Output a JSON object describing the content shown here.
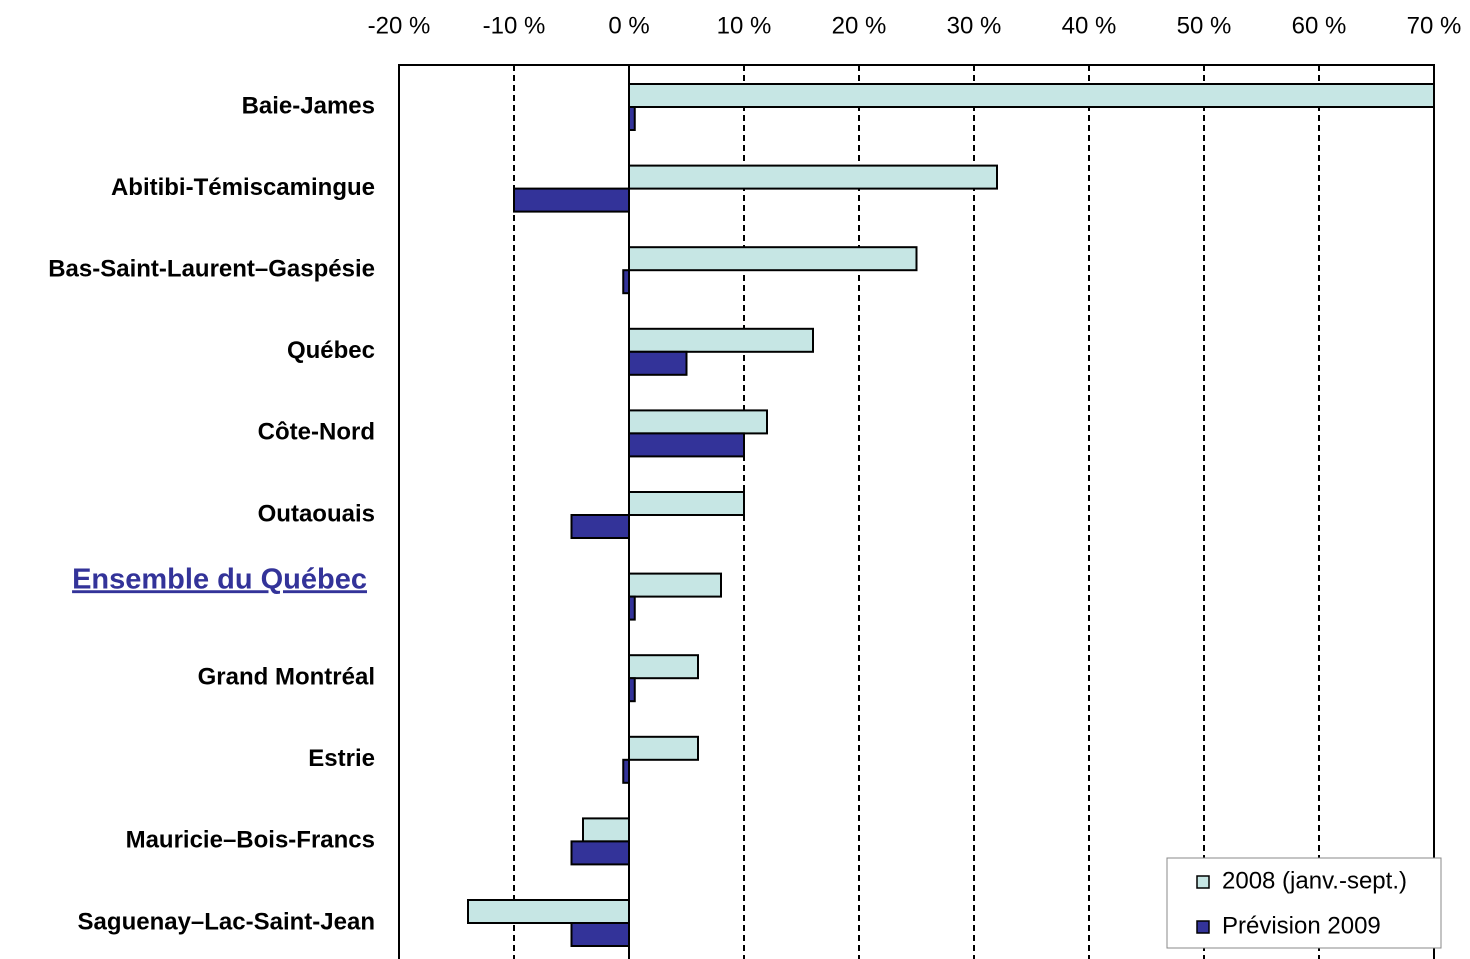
{
  "chart_data": {
    "type": "bar",
    "orientation": "horizontal",
    "categories": [
      "Baie-James",
      "Abitibi-Témiscamingue",
      "Bas-Saint-Laurent–Gaspésie",
      "Québec",
      "Côte-Nord",
      "Outaouais",
      "Ensemble du Québec",
      "Grand Montréal",
      "Estrie",
      "Mauricie–Bois-Francs",
      "Saguenay–Lac-Saint-Jean"
    ],
    "series": [
      {
        "name": "2008 (janv.-sept.)",
        "color": "#c6e6e4",
        "values": [
          70,
          32,
          25,
          16,
          12,
          10,
          8,
          6,
          6,
          -4,
          -14
        ]
      },
      {
        "name": "Prévision 2009",
        "color": "#333399",
        "values": [
          0.5,
          -10,
          -0.5,
          5,
          10,
          -5,
          0.5,
          0.5,
          -0.5,
          -5,
          -5
        ]
      }
    ],
    "xlim": [
      -20,
      70
    ],
    "xticks": [
      {
        "value": -20,
        "label": "-20 %"
      },
      {
        "value": -10,
        "label": "-10 %"
      },
      {
        "value": 0,
        "label": "0 %"
      },
      {
        "value": 10,
        "label": "10 %"
      },
      {
        "value": 20,
        "label": "20 %"
      },
      {
        "value": 30,
        "label": "30 %"
      },
      {
        "value": 40,
        "label": "40 %"
      },
      {
        "value": 50,
        "label": "50 %"
      },
      {
        "value": 60,
        "label": "60 %"
      },
      {
        "value": 70,
        "label": "70 %"
      }
    ],
    "grid": true,
    "legend": "bottom-right"
  }
}
